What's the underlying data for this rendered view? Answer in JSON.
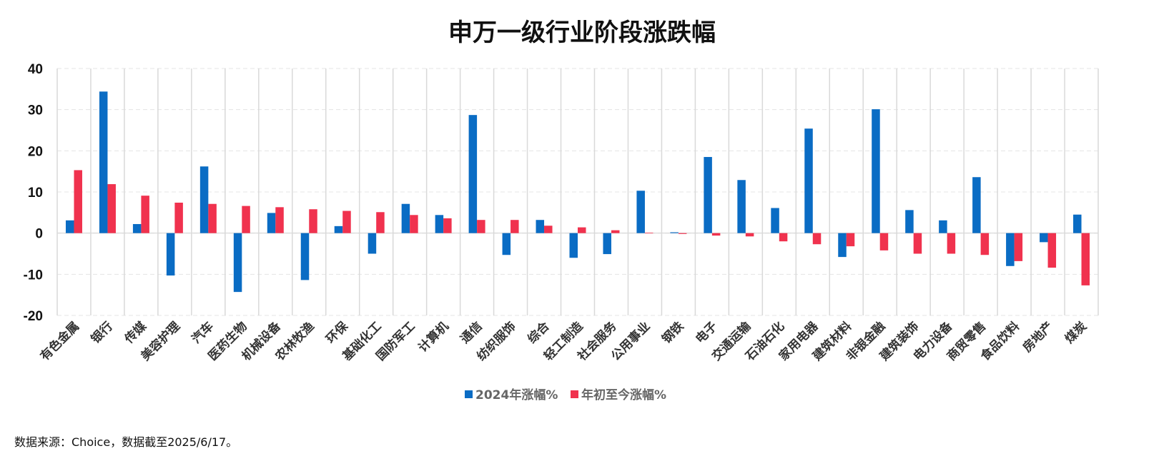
{
  "chart_data": {
    "type": "bar",
    "title": "申万一级行业阶段涨跌幅",
    "ylim": [
      -20,
      40
    ],
    "yticks": [
      -20,
      -10,
      0,
      10,
      20,
      30,
      40
    ],
    "grid": true,
    "legend_position": "bottom-center",
    "categories": [
      "有色金属",
      "银行",
      "传媒",
      "美容护理",
      "汽车",
      "医药生物",
      "机械设备",
      "农林牧渔",
      "环保",
      "基础化工",
      "国防军工",
      "计算机",
      "通信",
      "纺织服饰",
      "综合",
      "轻工制造",
      "社会服务",
      "公用事业",
      "钢铁",
      "电子",
      "交通运输",
      "石油石化",
      "家用电器",
      "建筑材料",
      "非银金融",
      "建筑装饰",
      "电力设备",
      "商贸零售",
      "食品饮料",
      "房地产",
      "煤炭"
    ],
    "series": [
      {
        "name": "2024年涨幅%",
        "color": "#0a6cc4",
        "values": [
          3.1,
          34.4,
          2.2,
          -10.3,
          16.2,
          -14.3,
          4.9,
          -11.4,
          1.7,
          -5.0,
          7.1,
          4.4,
          28.7,
          -5.3,
          3.2,
          -6.0,
          -5.1,
          10.3,
          0.2,
          18.5,
          12.9,
          6.1,
          25.4,
          -5.8,
          30.1,
          5.6,
          3.1,
          13.6,
          -8.0,
          -2.2,
          4.5
        ]
      },
      {
        "name": "年初至今涨幅%",
        "color": "#f0324e",
        "values": [
          15.3,
          11.9,
          9.1,
          7.4,
          7.1,
          6.6,
          6.3,
          5.8,
          5.4,
          5.1,
          4.4,
          3.6,
          3.2,
          3.2,
          1.8,
          1.4,
          0.7,
          0.1,
          -0.2,
          -0.6,
          -0.8,
          -2.0,
          -2.7,
          -3.2,
          -4.2,
          -5.0,
          -5.0,
          -5.3,
          -6.8,
          -8.4,
          -12.7
        ]
      }
    ]
  },
  "footer": {
    "source": "数据来源：Choice，数据截至2025/6/17。"
  }
}
